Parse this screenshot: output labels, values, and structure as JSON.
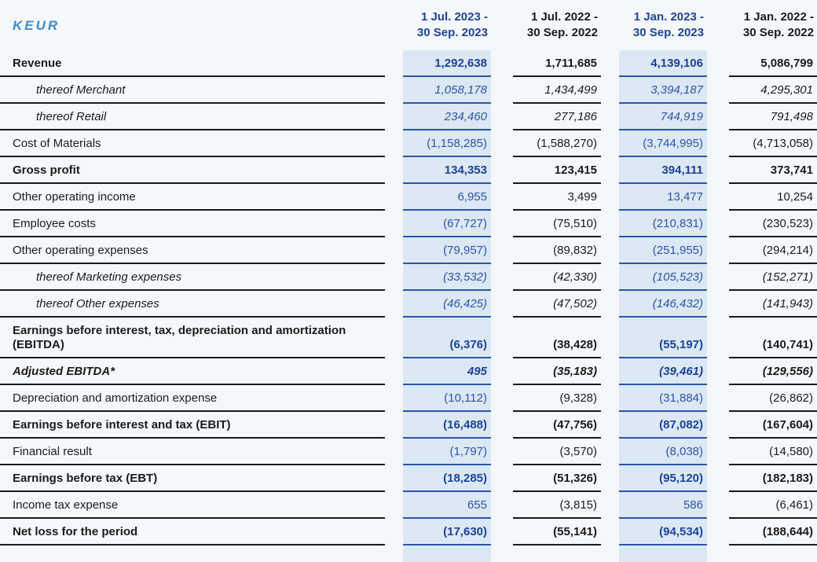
{
  "table": {
    "unit_label": "KEUR",
    "columns": [
      {
        "line1": "1 Jul. 2023 -",
        "line2": "30 Sep. 2023",
        "highlighted": true
      },
      {
        "line1": "1 Jul. 2022 -",
        "line2": "30 Sep. 2022",
        "highlighted": false
      },
      {
        "line1": "1 Jan. 2023 -",
        "line2": "30 Sep. 2023",
        "highlighted": true
      },
      {
        "line1": "1 Jan. 2022 -",
        "line2": "30 Sep. 2022",
        "highlighted": false
      }
    ],
    "rows": [
      {
        "label": "Revenue",
        "bold": true,
        "italic": false,
        "indent": false,
        "values": [
          "1,292,638",
          "1,711,685",
          "4,139,106",
          "5,086,799"
        ]
      },
      {
        "label": "thereof Merchant",
        "bold": false,
        "italic": true,
        "indent": true,
        "values": [
          "1,058,178",
          "1,434,499",
          "3,394,187",
          "4,295,301"
        ]
      },
      {
        "label": "thereof Retail",
        "bold": false,
        "italic": true,
        "indent": true,
        "values": [
          "234,460",
          "277,186",
          "744,919",
          "791,498"
        ]
      },
      {
        "label": "Cost of Materials",
        "bold": false,
        "italic": false,
        "indent": false,
        "values": [
          "(1,158,285)",
          "(1,588,270)",
          "(3,744,995)",
          "(4,713,058)"
        ]
      },
      {
        "label": "Gross profit",
        "bold": true,
        "italic": false,
        "indent": false,
        "values": [
          "134,353",
          "123,415",
          "394,111",
          "373,741"
        ]
      },
      {
        "label": "Other operating income",
        "bold": false,
        "italic": false,
        "indent": false,
        "values": [
          "6,955",
          "3,499",
          "13,477",
          "10,254"
        ]
      },
      {
        "label": "Employee costs",
        "bold": false,
        "italic": false,
        "indent": false,
        "values": [
          "(67,727)",
          "(75,510)",
          "(210,831)",
          "(230,523)"
        ]
      },
      {
        "label": "Other operating expenses",
        "bold": false,
        "italic": false,
        "indent": false,
        "values": [
          "(79,957)",
          "(89,832)",
          "(251,955)",
          "(294,214)"
        ]
      },
      {
        "label": "thereof Marketing expenses",
        "bold": false,
        "italic": true,
        "indent": true,
        "values": [
          "(33,532)",
          "(42,330)",
          "(105,523)",
          "(152,271)"
        ]
      },
      {
        "label": "thereof Other expenses",
        "bold": false,
        "italic": true,
        "indent": true,
        "values": [
          "(46,425)",
          "(47,502)",
          "(146,432)",
          "(141,943)"
        ]
      },
      {
        "label": "Earnings before interest, tax, depreciation and amortization (EBITDA)",
        "bold": true,
        "italic": false,
        "indent": false,
        "values": [
          "(6,376)",
          "(38,428)",
          "(55,197)",
          "(140,741)"
        ]
      },
      {
        "label": "Adjusted EBITDA*",
        "bold": true,
        "italic": true,
        "indent": false,
        "values": [
          "495",
          "(35,183)",
          "(39,461)",
          "(129,556)"
        ]
      },
      {
        "label": "Depreciation and amortization expense",
        "bold": false,
        "italic": false,
        "indent": false,
        "values": [
          "(10,112)",
          "(9,328)",
          "(31,884)",
          "(26,862)"
        ]
      },
      {
        "label": "Earnings before interest and tax (EBIT)",
        "bold": true,
        "italic": false,
        "indent": false,
        "values": [
          "(16,488)",
          "(47,756)",
          "(87,082)",
          "(167,604)"
        ]
      },
      {
        "label": "Financial result",
        "bold": false,
        "italic": false,
        "indent": false,
        "values": [
          "(1,797)",
          "(3,570)",
          "(8,038)",
          "(14,580)"
        ]
      },
      {
        "label": "Earnings before tax (EBT)",
        "bold": true,
        "italic": false,
        "indent": false,
        "values": [
          "(18,285)",
          "(51,326)",
          "(95,120)",
          "(182,183)"
        ]
      },
      {
        "label": "Income tax expense",
        "bold": false,
        "italic": false,
        "indent": false,
        "values": [
          "655",
          "(3,815)",
          "586",
          "(6,461)"
        ]
      },
      {
        "label": "Net loss for the period",
        "bold": true,
        "italic": false,
        "indent": false,
        "values": [
          "(17,630)",
          "(55,141)",
          "(94,534)",
          "(188,644)"
        ]
      }
    ],
    "colors": {
      "page_background": "#f5f8fa",
      "highlight_background": "#dce8f4",
      "blue_text_bold": "#1c4299",
      "blue_text_regular": "#2e53a8",
      "blue_border": "#2b55a8",
      "black_text": "#1a1a1a",
      "unit_label_blue": "#3e8dcb"
    }
  }
}
